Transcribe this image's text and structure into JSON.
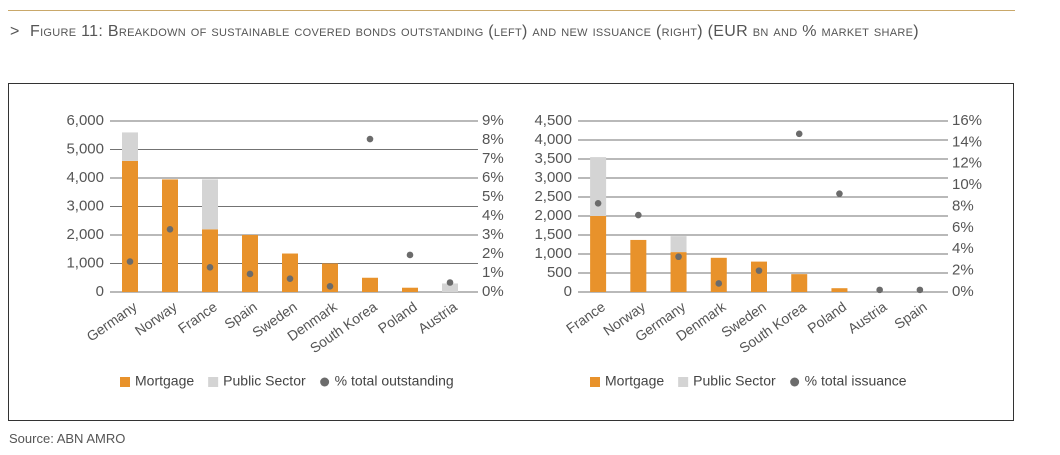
{
  "header": {
    "marker": ">",
    "title": "Figure 11: Breakdown of sustainable covered bonds outstanding (left) and new issuance (right) (EUR bn and % market share)"
  },
  "chart_data": [
    {
      "type": "bar",
      "stacked": true,
      "categories": [
        "Germany",
        "Norway",
        "France",
        "Spain",
        "Sweden",
        "Denmark",
        "South Korea",
        "Poland",
        "Austria"
      ],
      "series": [
        {
          "name": "Mortgage",
          "color": "#e8922b",
          "values": [
            4600,
            3950,
            2200,
            2000,
            1350,
            1000,
            500,
            150,
            0
          ]
        },
        {
          "name": "Public Sector",
          "color": "#d4d4d4",
          "values": [
            1000,
            0,
            1750,
            0,
            0,
            0,
            0,
            0,
            300
          ]
        },
        {
          "name": "% total outstanding",
          "color": "#6b6b6b",
          "axis": "y2",
          "values": [
            1.6,
            3.3,
            1.3,
            0.95,
            0.7,
            0.3,
            8.05,
            1.95,
            0.5
          ]
        }
      ],
      "ylim": [
        0,
        6000
      ],
      "yticks": [
        0,
        {
          "value": 1000,
          "label": "1,000"
        },
        {
          "value": 2000,
          "label": "2,000"
        },
        {
          "value": 3000,
          "label": "3,000"
        },
        {
          "value": 4000,
          "label": "4,000"
        },
        {
          "value": 5000,
          "label": "5,000"
        },
        {
          "value": 6000,
          "label": "6,000"
        }
      ],
      "y2lim": [
        0,
        9
      ],
      "y2ticks": [
        {
          "value": 0,
          "label": "0%"
        },
        {
          "value": 1,
          "label": "1%"
        },
        {
          "value": 2,
          "label": "2%"
        },
        {
          "value": 3,
          "label": "3%"
        },
        {
          "value": 4,
          "label": "4%"
        },
        {
          "value": 5,
          "label": "5%"
        },
        {
          "value": 6,
          "label": "6%"
        },
        {
          "value": 7,
          "label": "7%"
        },
        {
          "value": 8,
          "label": "8%"
        },
        {
          "value": 9,
          "label": "9%"
        }
      ],
      "grid": true
    },
    {
      "type": "bar",
      "stacked": true,
      "categories": [
        "France",
        "Norway",
        "Germany",
        "Denmark",
        "Sweden",
        "South Korea",
        "Poland",
        "Austria",
        "Spain"
      ],
      "series": [
        {
          "name": "Mortgage",
          "color": "#e8922b",
          "values": [
            2000,
            1370,
            1050,
            900,
            800,
            470,
            100,
            0,
            0
          ]
        },
        {
          "name": "Public Sector",
          "color": "#d4d4d4",
          "values": [
            1550,
            0,
            420,
            0,
            0,
            0,
            0,
            0,
            0
          ]
        },
        {
          "name": "% total issuance",
          "color": "#6b6b6b",
          "axis": "y2",
          "values": [
            8.3,
            7.2,
            3.3,
            0.8,
            2,
            14.8,
            9.2,
            0.2,
            0.2
          ]
        }
      ],
      "ylim": [
        0,
        4500
      ],
      "yticks": [
        0,
        500,
        {
          "value": 1000,
          "label": "1,000"
        },
        {
          "value": 1500,
          "label": "1,500"
        },
        {
          "value": 2000,
          "label": "2,000"
        },
        {
          "value": 2500,
          "label": "2,500"
        },
        {
          "value": 3000,
          "label": "3,000"
        },
        {
          "value": 3500,
          "label": "3,500"
        },
        {
          "value": 4000,
          "label": "4,000"
        },
        {
          "value": 4500,
          "label": "4,500"
        }
      ],
      "y2lim": [
        0,
        16
      ],
      "y2ticks": [
        {
          "value": 0,
          "label": "0%"
        },
        {
          "value": 2,
          "label": "2%"
        },
        {
          "value": 4,
          "label": "4%"
        },
        {
          "value": 6,
          "label": "6%"
        },
        {
          "value": 8,
          "label": "8%"
        },
        {
          "value": 10,
          "label": "10%"
        },
        {
          "value": 12,
          "label": "12%"
        },
        {
          "value": 14,
          "label": "14%"
        },
        {
          "value": 16,
          "label": "16%"
        }
      ],
      "grid": true
    }
  ],
  "source": "Source: ABN AMRO"
}
